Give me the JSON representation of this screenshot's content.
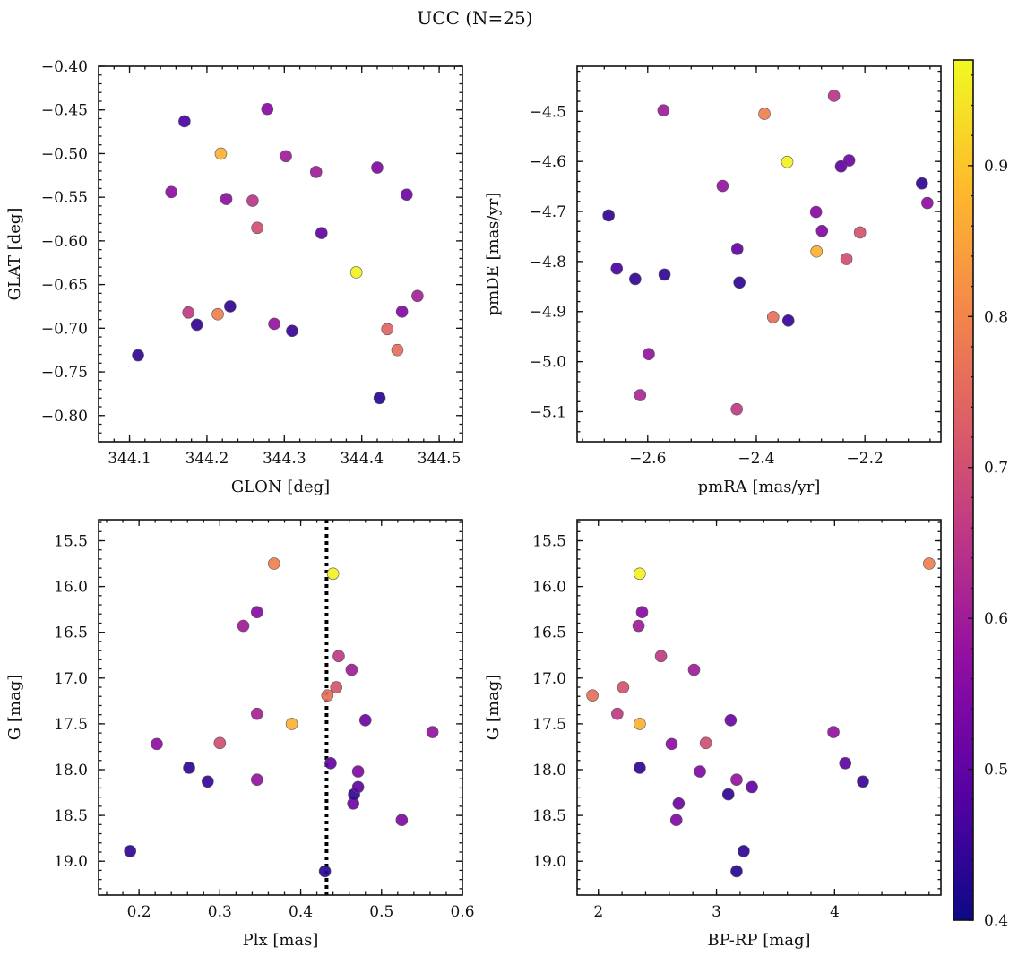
{
  "figure": {
    "title": "UCC (N=25)"
  },
  "colorbar": {
    "min": 0.4,
    "max": 0.97,
    "ticks": [
      0.4,
      0.5,
      0.6,
      0.7,
      0.8,
      0.9
    ],
    "colormap": "plasma"
  },
  "chart_data": [
    {
      "type": "scatter",
      "id": "glon-glat",
      "xlabel": "GLON [deg]",
      "ylabel": "GLAT [deg]",
      "xlim": [
        344.06,
        344.53
      ],
      "ylim": [
        -0.83,
        -0.4
      ],
      "y_inverted": false,
      "xticks": [
        344.1,
        344.2,
        344.3,
        344.4,
        344.5
      ],
      "yticks": [
        -0.4,
        -0.45,
        -0.5,
        -0.55,
        -0.6,
        -0.65,
        -0.7,
        -0.75,
        -0.8
      ],
      "xdec": 1,
      "ydec": 2,
      "points": [
        {
          "x": 344.111,
          "y": -0.731,
          "c": 0.44
        },
        {
          "x": 344.171,
          "y": -0.463,
          "c": 0.47
        },
        {
          "x": 344.154,
          "y": -0.544,
          "c": 0.57
        },
        {
          "x": 344.176,
          "y": -0.682,
          "c": 0.66
        },
        {
          "x": 344.187,
          "y": -0.696,
          "c": 0.44
        },
        {
          "x": 344.214,
          "y": -0.684,
          "c": 0.79
        },
        {
          "x": 344.218,
          "y": -0.5,
          "c": 0.87
        },
        {
          "x": 344.225,
          "y": -0.552,
          "c": 0.57
        },
        {
          "x": 344.23,
          "y": -0.675,
          "c": 0.44
        },
        {
          "x": 344.259,
          "y": -0.554,
          "c": 0.65
        },
        {
          "x": 344.265,
          "y": -0.585,
          "c": 0.7
        },
        {
          "x": 344.278,
          "y": -0.449,
          "c": 0.56
        },
        {
          "x": 344.287,
          "y": -0.695,
          "c": 0.58
        },
        {
          "x": 344.302,
          "y": -0.503,
          "c": 0.6
        },
        {
          "x": 344.31,
          "y": -0.703,
          "c": 0.45
        },
        {
          "x": 344.341,
          "y": -0.521,
          "c": 0.6
        },
        {
          "x": 344.348,
          "y": -0.591,
          "c": 0.5
        },
        {
          "x": 344.393,
          "y": -0.636,
          "c": 0.96
        },
        {
          "x": 344.42,
          "y": -0.516,
          "c": 0.55
        },
        {
          "x": 344.423,
          "y": -0.78,
          "c": 0.43
        },
        {
          "x": 344.433,
          "y": -0.701,
          "c": 0.74
        },
        {
          "x": 344.446,
          "y": -0.725,
          "c": 0.76
        },
        {
          "x": 344.452,
          "y": -0.681,
          "c": 0.55
        },
        {
          "x": 344.458,
          "y": -0.547,
          "c": 0.52
        },
        {
          "x": 344.472,
          "y": -0.663,
          "c": 0.61
        }
      ]
    },
    {
      "type": "scatter",
      "id": "pm",
      "xlabel": "pmRA [mas/yr]",
      "ylabel": "pmDE [mas/yr]",
      "xlim": [
        -2.73,
        -2.06
      ],
      "ylim": [
        -5.16,
        -4.41
      ],
      "y_inverted": false,
      "xticks": [
        -2.6,
        -2.4,
        -2.2
      ],
      "yticks": [
        -4.5,
        -4.6,
        -4.7,
        -4.8,
        -4.9,
        -5.0,
        -5.1
      ],
      "xdec": 1,
      "ydec": 1,
      "points": [
        {
          "x": -2.672,
          "y": -4.708,
          "c": 0.44
        },
        {
          "x": -2.657,
          "y": -4.814,
          "c": 0.47
        },
        {
          "x": -2.623,
          "y": -4.835,
          "c": 0.44
        },
        {
          "x": -2.614,
          "y": -5.067,
          "c": 0.62
        },
        {
          "x": -2.598,
          "y": -4.985,
          "c": 0.58
        },
        {
          "x": -2.571,
          "y": -4.498,
          "c": 0.6
        },
        {
          "x": -2.569,
          "y": -4.826,
          "c": 0.44
        },
        {
          "x": -2.462,
          "y": -4.649,
          "c": 0.58
        },
        {
          "x": -2.435,
          "y": -4.775,
          "c": 0.5
        },
        {
          "x": -2.436,
          "y": -5.095,
          "c": 0.66
        },
        {
          "x": -2.431,
          "y": -4.842,
          "c": 0.44
        },
        {
          "x": -2.385,
          "y": -4.505,
          "c": 0.79
        },
        {
          "x": -2.369,
          "y": -4.911,
          "c": 0.76
        },
        {
          "x": -2.343,
          "y": -4.601,
          "c": 0.96
        },
        {
          "x": -2.341,
          "y": -4.918,
          "c": 0.45
        },
        {
          "x": -2.29,
          "y": -4.701,
          "c": 0.56
        },
        {
          "x": -2.289,
          "y": -4.78,
          "c": 0.87
        },
        {
          "x": -2.279,
          "y": -4.739,
          "c": 0.55
        },
        {
          "x": -2.257,
          "y": -4.469,
          "c": 0.65
        },
        {
          "x": -2.244,
          "y": -4.61,
          "c": 0.5
        },
        {
          "x": -2.234,
          "y": -4.795,
          "c": 0.7
        },
        {
          "x": -2.229,
          "y": -4.598,
          "c": 0.52
        },
        {
          "x": -2.209,
          "y": -4.742,
          "c": 0.71
        },
        {
          "x": -2.095,
          "y": -4.644,
          "c": 0.44
        },
        {
          "x": -2.085,
          "y": -4.683,
          "c": 0.57
        }
      ]
    },
    {
      "type": "scatter",
      "id": "plx-g",
      "xlabel": "Plx [mas]",
      "ylabel": "G [mag]",
      "xlim": [
        0.15,
        0.6
      ],
      "ylim": [
        19.37,
        15.27
      ],
      "y_inverted": true,
      "xticks": [
        0.2,
        0.3,
        0.4,
        0.5,
        0.6
      ],
      "yticks": [
        15.5,
        16.0,
        16.5,
        17.0,
        17.5,
        18.0,
        18.5,
        19.0
      ],
      "xdec": 1,
      "ydec": 1,
      "reference_line_x": 0.432,
      "points": [
        {
          "x": 0.189,
          "y": 18.89,
          "c": 0.44
        },
        {
          "x": 0.222,
          "y": 17.72,
          "c": 0.57
        },
        {
          "x": 0.262,
          "y": 17.98,
          "c": 0.44
        },
        {
          "x": 0.285,
          "y": 18.13,
          "c": 0.45
        },
        {
          "x": 0.3,
          "y": 17.71,
          "c": 0.7
        },
        {
          "x": 0.329,
          "y": 16.43,
          "c": 0.6
        },
        {
          "x": 0.346,
          "y": 16.28,
          "c": 0.56
        },
        {
          "x": 0.346,
          "y": 17.39,
          "c": 0.61
        },
        {
          "x": 0.346,
          "y": 18.11,
          "c": 0.58
        },
        {
          "x": 0.367,
          "y": 15.75,
          "c": 0.79
        },
        {
          "x": 0.389,
          "y": 17.5,
          "c": 0.87
        },
        {
          "x": 0.43,
          "y": 19.11,
          "c": 0.43
        },
        {
          "x": 0.433,
          "y": 17.19,
          "c": 0.76
        },
        {
          "x": 0.437,
          "y": 17.93,
          "c": 0.5
        },
        {
          "x": 0.44,
          "y": 15.86,
          "c": 0.96
        },
        {
          "x": 0.444,
          "y": 17.1,
          "c": 0.71
        },
        {
          "x": 0.447,
          "y": 16.76,
          "c": 0.66
        },
        {
          "x": 0.463,
          "y": 16.91,
          "c": 0.6
        },
        {
          "x": 0.465,
          "y": 18.37,
          "c": 0.52
        },
        {
          "x": 0.466,
          "y": 18.27,
          "c": 0.44
        },
        {
          "x": 0.471,
          "y": 18.02,
          "c": 0.55
        },
        {
          "x": 0.471,
          "y": 18.19,
          "c": 0.5
        },
        {
          "x": 0.48,
          "y": 17.46,
          "c": 0.52
        },
        {
          "x": 0.525,
          "y": 18.55,
          "c": 0.55
        },
        {
          "x": 0.563,
          "y": 17.59,
          "c": 0.58
        }
      ]
    },
    {
      "type": "scatter",
      "id": "bprp-g",
      "xlabel": "BP-RP [mag]",
      "ylabel": "G [mag]",
      "xlim": [
        1.82,
        4.9
      ],
      "ylim": [
        19.37,
        15.27
      ],
      "y_inverted": true,
      "xticks": [
        2,
        3,
        4
      ],
      "yticks": [
        15.5,
        16.0,
        16.5,
        17.0,
        17.5,
        18.0,
        18.5,
        19.0
      ],
      "xdec": 0,
      "ydec": 1,
      "points": [
        {
          "x": 1.95,
          "y": 17.19,
          "c": 0.76
        },
        {
          "x": 2.16,
          "y": 17.39,
          "c": 0.66
        },
        {
          "x": 2.21,
          "y": 17.1,
          "c": 0.71
        },
        {
          "x": 2.34,
          "y": 16.43,
          "c": 0.6
        },
        {
          "x": 2.35,
          "y": 17.5,
          "c": 0.87
        },
        {
          "x": 2.35,
          "y": 15.86,
          "c": 0.96
        },
        {
          "x": 2.35,
          "y": 17.98,
          "c": 0.44
        },
        {
          "x": 2.37,
          "y": 16.28,
          "c": 0.56
        },
        {
          "x": 2.53,
          "y": 16.76,
          "c": 0.66
        },
        {
          "x": 2.62,
          "y": 17.72,
          "c": 0.57
        },
        {
          "x": 2.66,
          "y": 18.55,
          "c": 0.55
        },
        {
          "x": 2.68,
          "y": 18.37,
          "c": 0.52
        },
        {
          "x": 2.81,
          "y": 16.91,
          "c": 0.6
        },
        {
          "x": 2.86,
          "y": 18.02,
          "c": 0.55
        },
        {
          "x": 2.91,
          "y": 17.71,
          "c": 0.7
        },
        {
          "x": 3.1,
          "y": 18.27,
          "c": 0.44
        },
        {
          "x": 3.12,
          "y": 17.46,
          "c": 0.52
        },
        {
          "x": 3.17,
          "y": 19.11,
          "c": 0.43
        },
        {
          "x": 3.17,
          "y": 18.11,
          "c": 0.58
        },
        {
          "x": 3.23,
          "y": 18.89,
          "c": 0.44
        },
        {
          "x": 3.3,
          "y": 18.19,
          "c": 0.5
        },
        {
          "x": 3.99,
          "y": 17.59,
          "c": 0.58
        },
        {
          "x": 4.09,
          "y": 17.93,
          "c": 0.5
        },
        {
          "x": 4.24,
          "y": 18.13,
          "c": 0.45
        },
        {
          "x": 4.8,
          "y": 15.75,
          "c": 0.79
        }
      ]
    }
  ]
}
